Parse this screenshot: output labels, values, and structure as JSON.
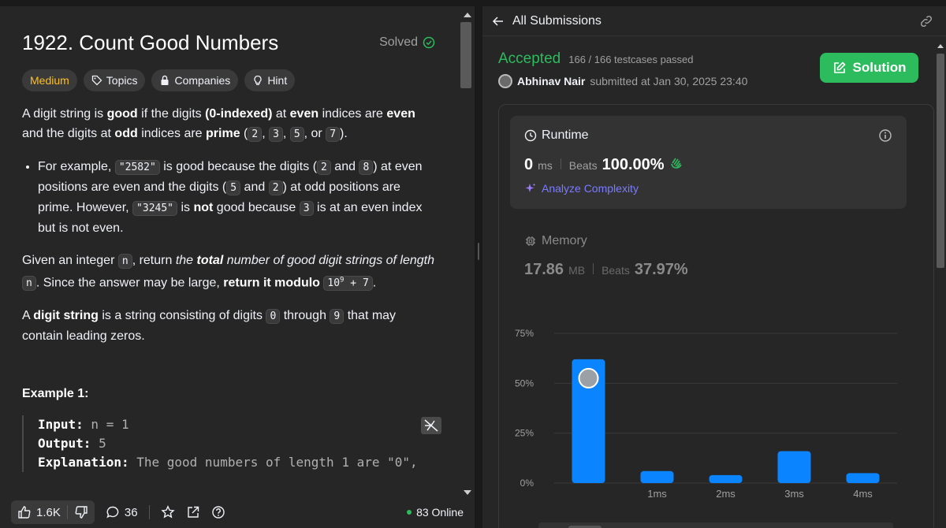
{
  "problem": {
    "title": "1922. Count Good Numbers",
    "solved_label": "Solved",
    "tags": [
      {
        "label": "Medium"
      },
      {
        "label": "Topics"
      },
      {
        "label": "Companies"
      },
      {
        "label": "Hint"
      }
    ],
    "p1_a": "A digit string is ",
    "p1_good": "good",
    "p1_b": " if the digits ",
    "p1_idx": "(0-indexed)",
    "p1_c": " at ",
    "p1_even1": "even",
    "p1_d": " indices are ",
    "p1_even2": "even",
    "p1_e": " and the digits at ",
    "p1_odd": "odd",
    "p1_f": " indices are ",
    "p1_prime": "prime",
    "p1_g": " (",
    "p1_c2": "2",
    "p1_c3": "3",
    "p1_c5": "5",
    "p1_or": ", or ",
    "p1_c7": "7",
    "p1_end": ").",
    "li_a": "For example, ",
    "li_code1": "\"2582\"",
    "li_b": " is good because the digits (",
    "li_c2": "2",
    "li_and1": " and ",
    "li_c8": "8",
    "li_c": ") at even positions are even and the digits (",
    "li_c5": "5",
    "li_and2": " and ",
    "li_c2b": "2",
    "li_d": ") at odd positions are prime. However, ",
    "li_code2": "\"3245\"",
    "li_e": " is ",
    "li_not": "not",
    "li_f": " good because ",
    "li_c3": "3",
    "li_g": " is at an even index but is not even.",
    "p2_a": "Given an integer ",
    "p2_n": "n",
    "p2_b": ", return ",
    "p2_the": "the ",
    "p2_total": "total",
    "p2_c": " number of good digit strings of length ",
    "p2_n2": "n",
    "p2_d": ". Since the answer may be large, ",
    "p2_ret": "return it modulo ",
    "p2_mod": "10",
    "p2_exp": "9",
    "p2_plus": " + 7",
    "p2_end": ".",
    "p3_a": "A ",
    "p3_ds": "digit string",
    "p3_b": " is a string consisting of digits ",
    "p3_c0": "0",
    "p3_through": " through ",
    "p3_c9": "9",
    "p3_c": " that may contain leading zeros.",
    "example_title": "Example 1:",
    "ex_input_label": "Input:",
    "ex_input_val": " n = 1",
    "ex_output_label": "Output:",
    "ex_output_val": " 5",
    "ex_expl_label": "Explanation:",
    "ex_expl_val": " The good numbers of length 1 are \"0\","
  },
  "bottom_bar": {
    "likes": "1.6K",
    "comments": "36",
    "online": "83 Online"
  },
  "submission": {
    "back_label": "All Submissions",
    "status": "Accepted",
    "testcases": "166 / 166 testcases passed",
    "author": "Abhinav Nair",
    "submitted_at": "submitted at Jan 30, 2025 23:40",
    "solution_label": "Solution",
    "runtime": {
      "label": "Runtime",
      "value": "0",
      "unit": "ms",
      "beats_label": "Beats",
      "beats_value": "100.00%"
    },
    "analyze_label": "Analyze Complexity",
    "memory": {
      "label": "Memory",
      "value": "17.86",
      "unit": "MB",
      "beats_label": "Beats",
      "beats_value": "37.97%"
    }
  },
  "chart_data": {
    "type": "bar",
    "categories": [
      "",
      "1ms",
      "2ms",
      "3ms",
      "4ms"
    ],
    "values": [
      62,
      6,
      4,
      16,
      5
    ],
    "y_ticks": [
      "0%",
      "25%",
      "50%",
      "75%"
    ],
    "ylim": [
      0,
      75
    ],
    "highlight_index": 0,
    "bar_color": "#0a84ff",
    "grid": true
  },
  "colors": {
    "accent_green": "#2cbb5d",
    "medium": "#ffc01e",
    "bar": "#0a84ff"
  }
}
